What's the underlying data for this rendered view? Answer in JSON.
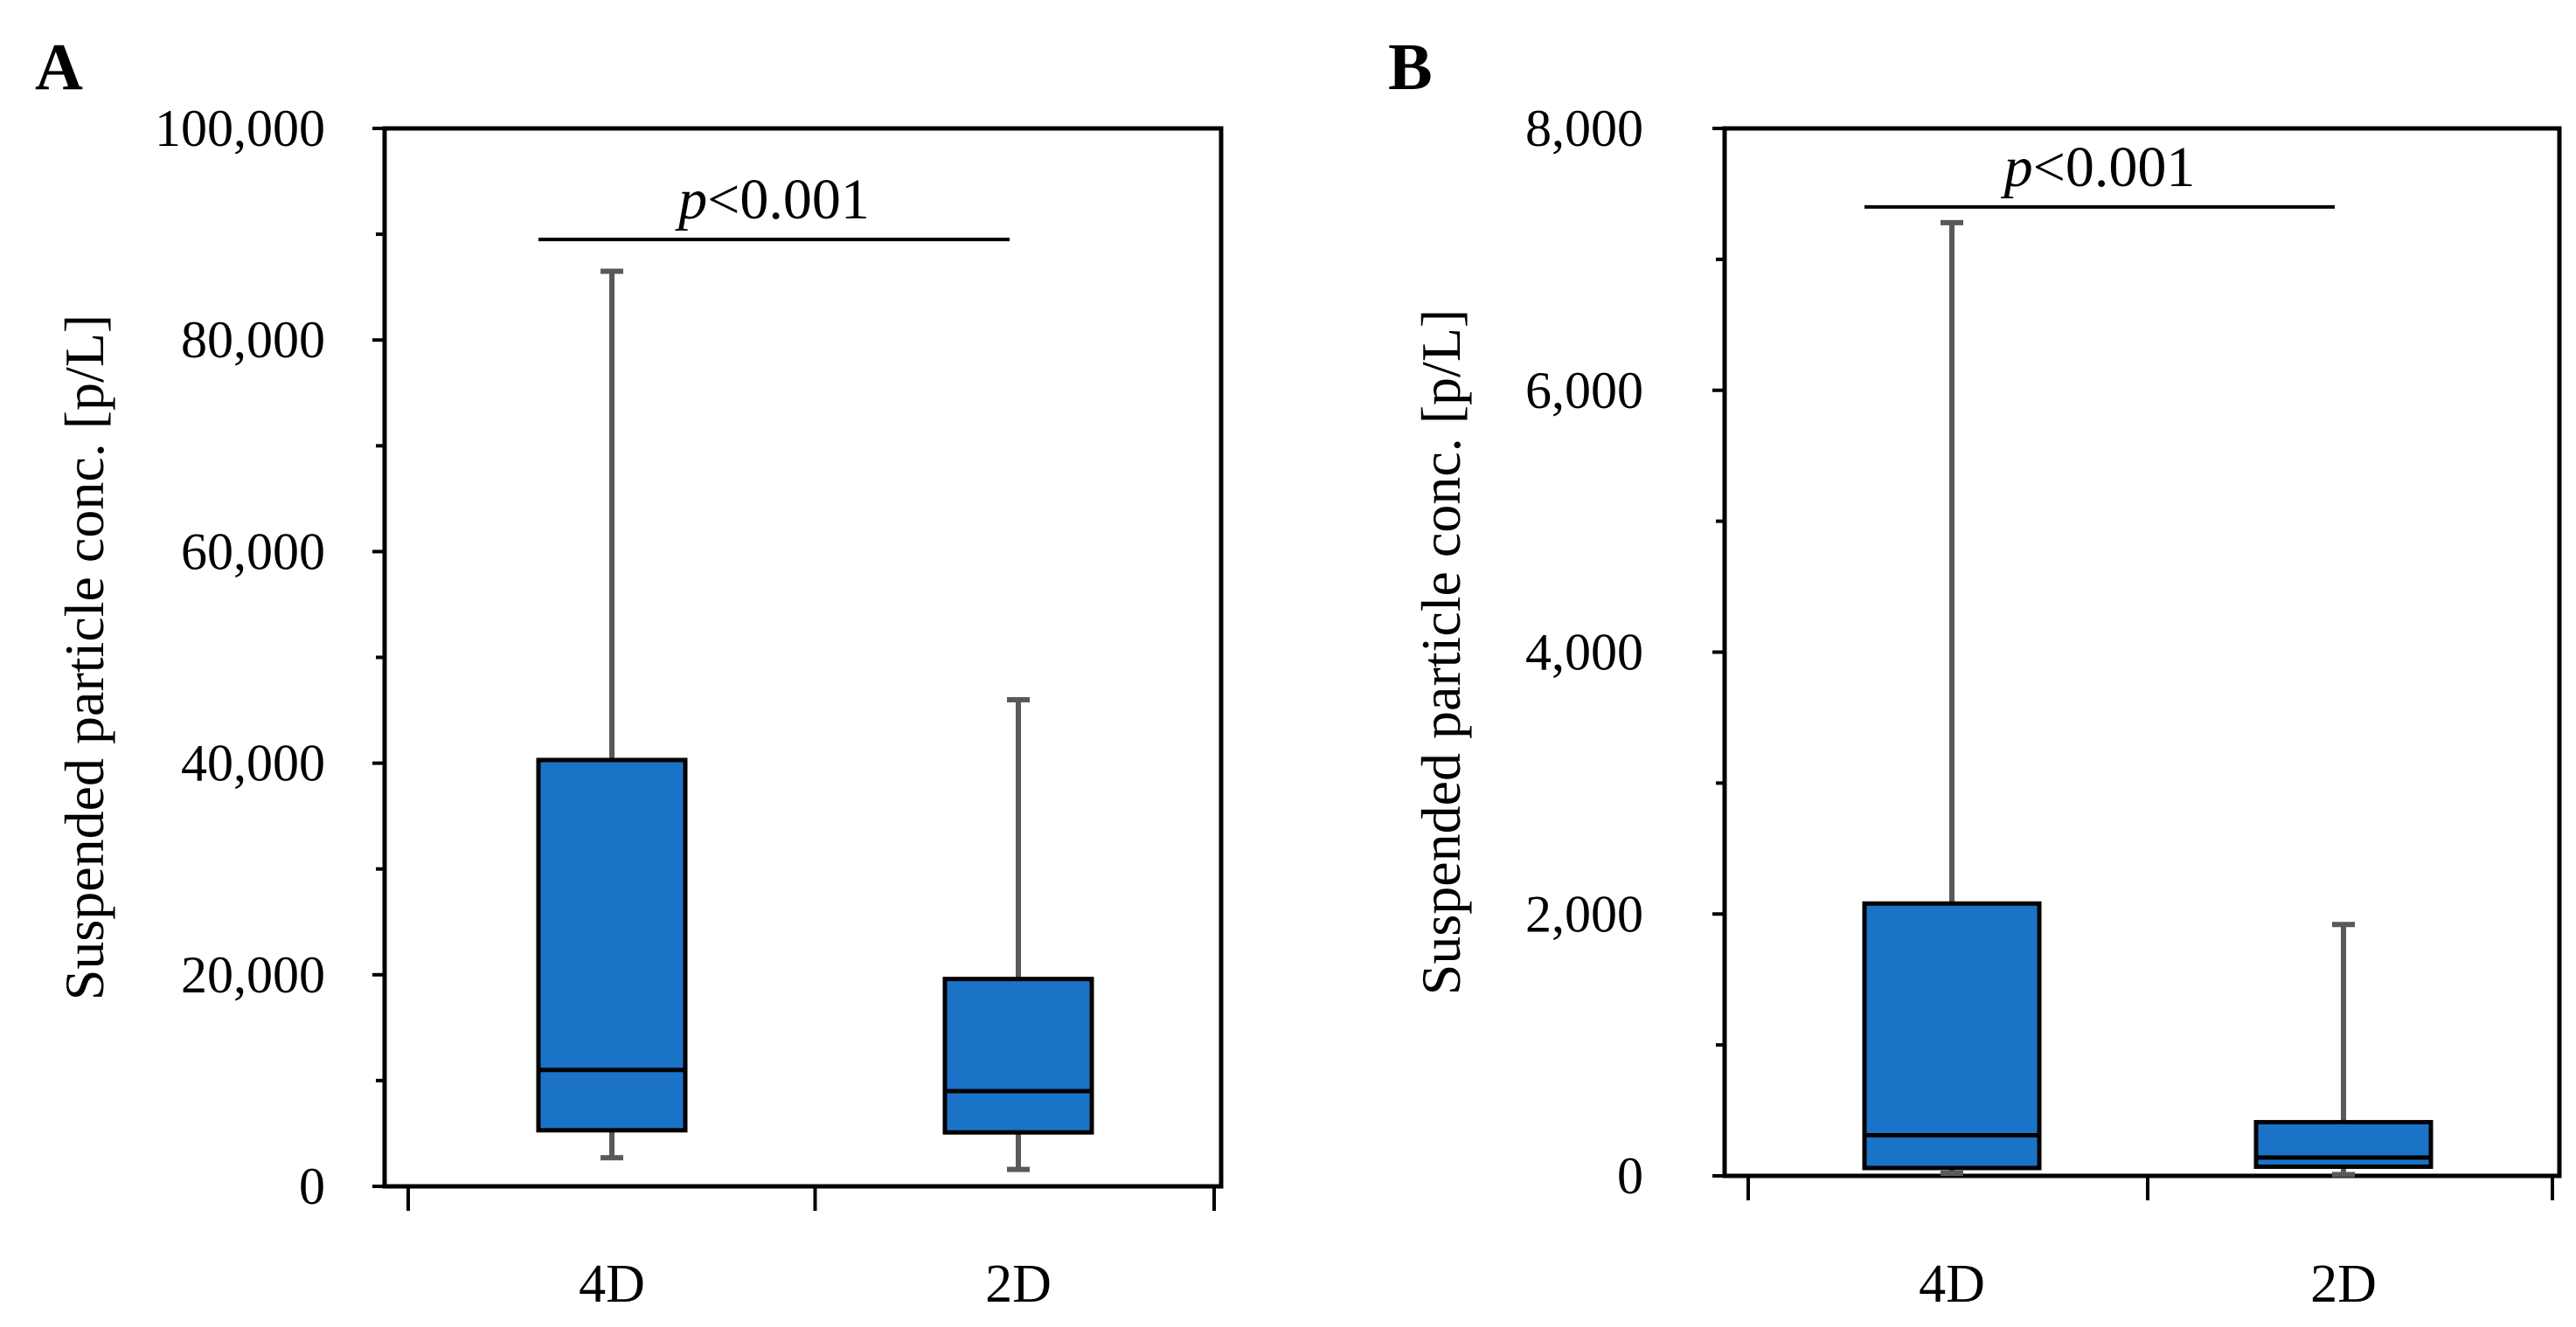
{
  "figure": {
    "panels": [
      "A",
      "B"
    ]
  },
  "chart_data": [
    {
      "type": "boxplot",
      "panel_label": "A",
      "title": "",
      "xlabel": "",
      "ylabel": "Suspended particle conc. [p/L]",
      "ylim": [
        0,
        100000
      ],
      "yticks": [
        0,
        20000,
        40000,
        60000,
        80000,
        100000
      ],
      "ytick_labels": [
        "0",
        "20,000",
        "40,000",
        "60,000",
        "80,000",
        "100,000"
      ],
      "y_minor_step": 10000,
      "categories": [
        "4D",
        "2D"
      ],
      "boxes": [
        {
          "category": "4D",
          "whisker_low": 2700,
          "q1": 5300,
          "median": 11000,
          "q3": 40300,
          "whisker_high": 86500
        },
        {
          "category": "2D",
          "whisker_low": 1600,
          "q1": 5100,
          "median": 9000,
          "q3": 19600,
          "whisker_high": 46000
        }
      ],
      "significance": {
        "p_italic": "p",
        "text": "<0.001",
        "y": 89500,
        "from": "4D",
        "to": "2D"
      },
      "colors": {
        "box_fill": "#1b73c8",
        "whisker": "#595959",
        "box_stroke": "#000000"
      }
    },
    {
      "type": "boxplot",
      "panel_label": "B",
      "title": "",
      "xlabel": "",
      "ylabel": "Suspended particle conc. [p/L]",
      "ylim": [
        0,
        8000
      ],
      "yticks": [
        0,
        2000,
        4000,
        6000,
        8000
      ],
      "ytick_labels": [
        "0",
        "2,000",
        "4,000",
        "6,000",
        "8,000"
      ],
      "y_minor_step": 1000,
      "categories": [
        "4D",
        "2D"
      ],
      "boxes": [
        {
          "category": "4D",
          "whisker_low": 20,
          "q1": 60,
          "median": 310,
          "q3": 2080,
          "whisker_high": 7280
        },
        {
          "category": "2D",
          "whisker_low": 10,
          "q1": 70,
          "median": 140,
          "q3": 410,
          "whisker_high": 1920
        }
      ],
      "significance": {
        "p_italic": "p",
        "text": "<0.001",
        "y": 7400,
        "from": "4D",
        "to": "2D"
      },
      "colors": {
        "box_fill": "#1b73c8",
        "whisker": "#595959",
        "box_stroke": "#000000"
      }
    }
  ]
}
